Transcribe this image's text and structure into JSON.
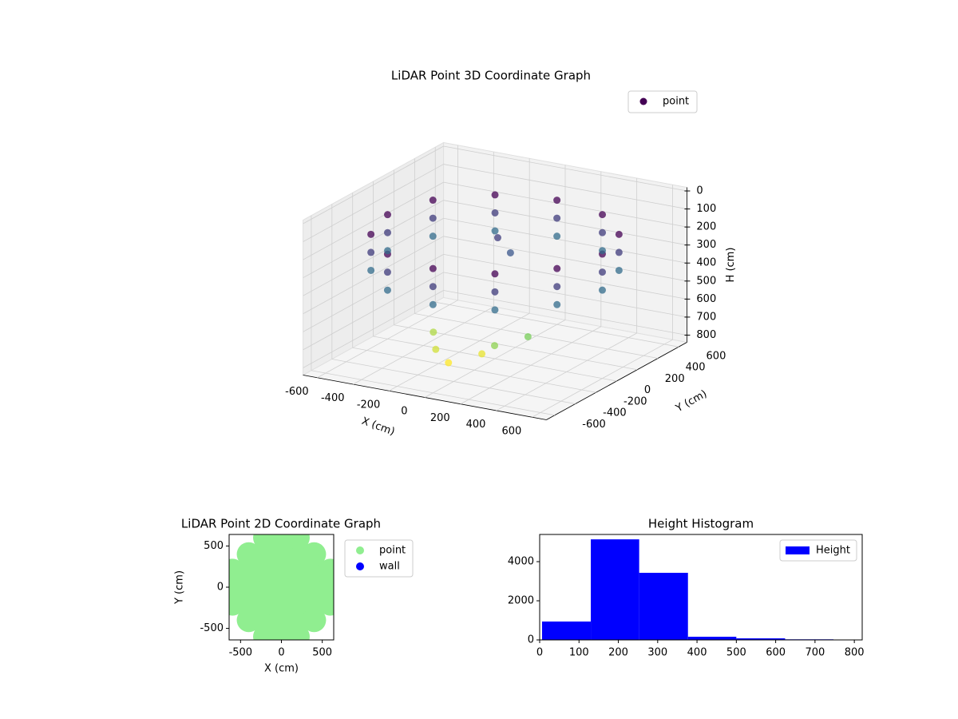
{
  "chart_data": [
    {
      "type": "scatter3d",
      "title": "LiDAR Point 3D Coordinate Graph",
      "xlabel": "X (cm)",
      "ylabel": "Y (cm)",
      "zlabel": "H (cm)",
      "xlim": [
        -680,
        680
      ],
      "ylim": [
        -680,
        680
      ],
      "zlim": [
        -20,
        840
      ],
      "z_inverted": true,
      "xticks": [
        -600,
        -400,
        -200,
        0,
        200,
        400,
        600
      ],
      "yticks": [
        -600,
        -400,
        -200,
        0,
        200,
        400,
        600
      ],
      "zticks": [
        0,
        100,
        200,
        300,
        400,
        500,
        600,
        700,
        800
      ],
      "legend": "upper right",
      "grid": true,
      "series": [
        {
          "name": "point",
          "colormap": "viridis",
          "x": [
            600,
            520,
            300,
            0,
            -300,
            -520,
            -600,
            -520,
            -300,
            0,
            300,
            520,
            600,
            520,
            300,
            0,
            -300,
            -520,
            -600,
            -520,
            -300,
            0,
            300,
            520,
            600,
            520,
            300,
            0,
            -300,
            -520,
            -600,
            -520,
            -300,
            0,
            300,
            520,
            200,
            -100,
            100,
            300,
            -200,
            0,
            -100,
            0
          ],
          "y": [
            0,
            300,
            520,
            600,
            520,
            300,
            0,
            -300,
            -520,
            -600,
            -520,
            -300,
            0,
            300,
            520,
            600,
            520,
            300,
            0,
            -300,
            -520,
            -600,
            -520,
            -300,
            0,
            300,
            520,
            600,
            520,
            300,
            0,
            -300,
            -520,
            -600,
            -520,
            -300,
            -350,
            -400,
            -300,
            -200,
            -250,
            -450,
            200,
            150
          ],
          "z": [
            150,
            150,
            150,
            150,
            150,
            150,
            150,
            150,
            150,
            150,
            150,
            150,
            250,
            250,
            250,
            250,
            250,
            250,
            250,
            250,
            250,
            250,
            250,
            250,
            350,
            350,
            350,
            350,
            350,
            350,
            350,
            350,
            350,
            350,
            350,
            350,
            620,
            680,
            700,
            600,
            650,
            720,
            250,
            300
          ]
        }
      ]
    },
    {
      "type": "scatter",
      "title": "LiDAR Point 2D Coordinate Graph",
      "xlabel": "X (cm)",
      "ylabel": "Y (cm)",
      "xlim": [
        -640,
        640
      ],
      "ylim": [
        -640,
        640
      ],
      "xticks": [
        -500,
        0,
        500
      ],
      "yticks": [
        -500,
        0,
        500
      ],
      "legend": "outside right",
      "series": [
        {
          "name": "point",
          "color": "#90ee90",
          "x": [
            -600,
            -600,
            -600,
            -400,
            -400,
            -400,
            -400,
            -400,
            -200,
            -200,
            -200,
            -200,
            -200,
            -200,
            -200,
            0,
            0,
            0,
            0,
            0,
            0,
            0,
            200,
            200,
            200,
            200,
            200,
            200,
            200,
            400,
            400,
            400,
            400,
            400,
            600,
            600,
            600
          ],
          "y": [
            -200,
            0,
            200,
            -400,
            -200,
            0,
            200,
            400,
            -600,
            -400,
            -200,
            0,
            200,
            400,
            600,
            -600,
            -400,
            -200,
            0,
            200,
            400,
            600,
            -600,
            -400,
            -200,
            0,
            200,
            400,
            600,
            -400,
            -200,
            0,
            200,
            400,
            -200,
            0,
            200
          ]
        },
        {
          "name": "wall",
          "color": "#0000ff",
          "x": [],
          "y": []
        }
      ]
    },
    {
      "type": "histogram",
      "title": "Height Histogram",
      "bins": [
        6,
        130,
        253,
        377,
        500,
        624,
        747
      ],
      "values": [
        940,
        5140,
        3430,
        160,
        80,
        30
      ],
      "series_name": "Height",
      "color": "#0000ff",
      "xlim": [
        0,
        820
      ],
      "ylim": [
        0,
        5390
      ],
      "xticks": [
        0,
        100,
        200,
        300,
        400,
        500,
        600,
        700,
        800
      ],
      "yticks": [
        0,
        2000,
        4000
      ],
      "legend": "upper right"
    }
  ]
}
